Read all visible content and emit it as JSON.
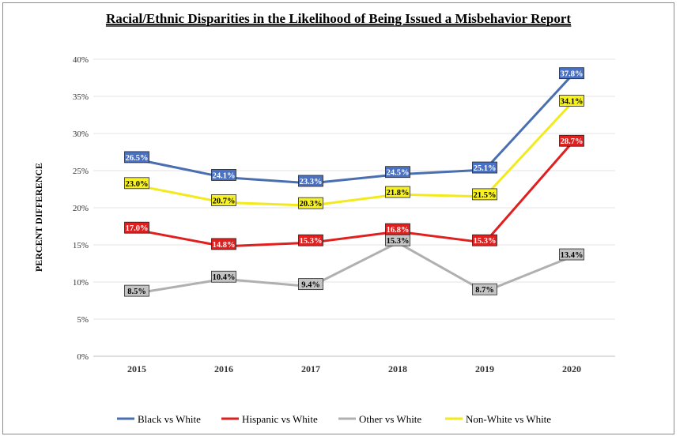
{
  "chart_data": {
    "type": "line",
    "title": "Racial/Ethnic Disparities in the Likelihood of Being Issued a Misbehavior Report",
    "ylabel": "PERCENT DIFFERENCE",
    "xlabel": "",
    "categories": [
      "2015",
      "2016",
      "2017",
      "2018",
      "2019",
      "2020"
    ],
    "ylim": [
      0,
      40
    ],
    "yticks": [
      "0%",
      "5%",
      "10%",
      "15%",
      "20%",
      "25%",
      "30%",
      "35%",
      "40%"
    ],
    "grid": true,
    "legend_position": "bottom",
    "series": [
      {
        "name": "Black vs White",
        "color": "#4a6fb0",
        "label_bg": "#4a72c4",
        "label_fg": "#ffffff",
        "values": [
          26.5,
          24.1,
          23.3,
          24.5,
          25.1,
          37.8
        ],
        "labels": [
          "26.5%",
          "24.1%",
          "23.3%",
          "24.5%",
          "25.1%",
          "37.8%"
        ]
      },
      {
        "name": "Hispanic vs White",
        "color": "#e01f1f",
        "label_bg": "#e01f1f",
        "label_fg": "#ffffff",
        "values": [
          17.0,
          14.8,
          15.3,
          16.8,
          15.3,
          28.7
        ],
        "labels": [
          "17.0%",
          "14.8%",
          "15.3%",
          "16.8%",
          "15.3%",
          "28.7%"
        ]
      },
      {
        "name": "Other vs White",
        "color": "#b0b0b0",
        "label_bg": "#c4c4c4",
        "label_fg": "#000000",
        "values": [
          8.5,
          10.4,
          9.4,
          15.3,
          8.7,
          13.4
        ],
        "labels": [
          "8.5%",
          "10.4%",
          "9.4%",
          "15.3%",
          "8.7%",
          "13.4%"
        ]
      },
      {
        "name": "Non-White vs White",
        "color": "#f2ea1a",
        "label_bg": "#f7f21e",
        "label_fg": "#000000",
        "values": [
          23.0,
          20.7,
          20.3,
          21.8,
          21.5,
          34.1
        ],
        "labels": [
          "23.0%",
          "20.7%",
          "20.3%",
          "21.8%",
          "21.5%",
          "34.1%"
        ]
      }
    ]
  }
}
